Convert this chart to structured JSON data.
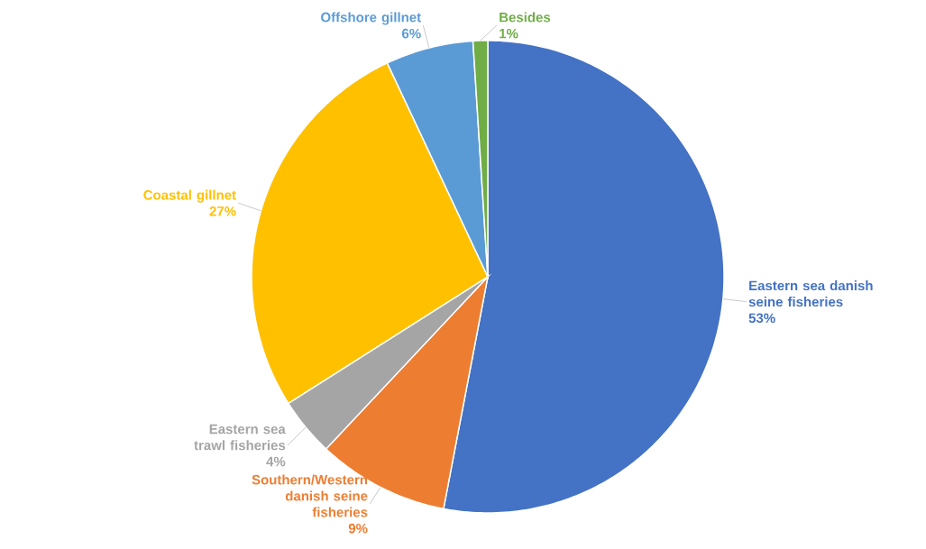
{
  "chart_data": {
    "type": "pie",
    "categories": [
      "Eastern sea danish seine fisheries",
      "Southern/Western danish seine fisheries",
      "Eastern sea trawl fisheries",
      "Coastal gillnet",
      "Offshore gillnet",
      "Besides"
    ],
    "values": [
      53,
      9,
      4,
      27,
      6,
      1
    ],
    "value_labels": [
      "53%",
      "9%",
      "4%",
      "27%",
      "6%",
      "1%"
    ],
    "colors": [
      "#4472c4",
      "#ed7d31",
      "#a5a5a5",
      "#ffc000",
      "#5b9bd5",
      "#70ad47"
    ]
  }
}
